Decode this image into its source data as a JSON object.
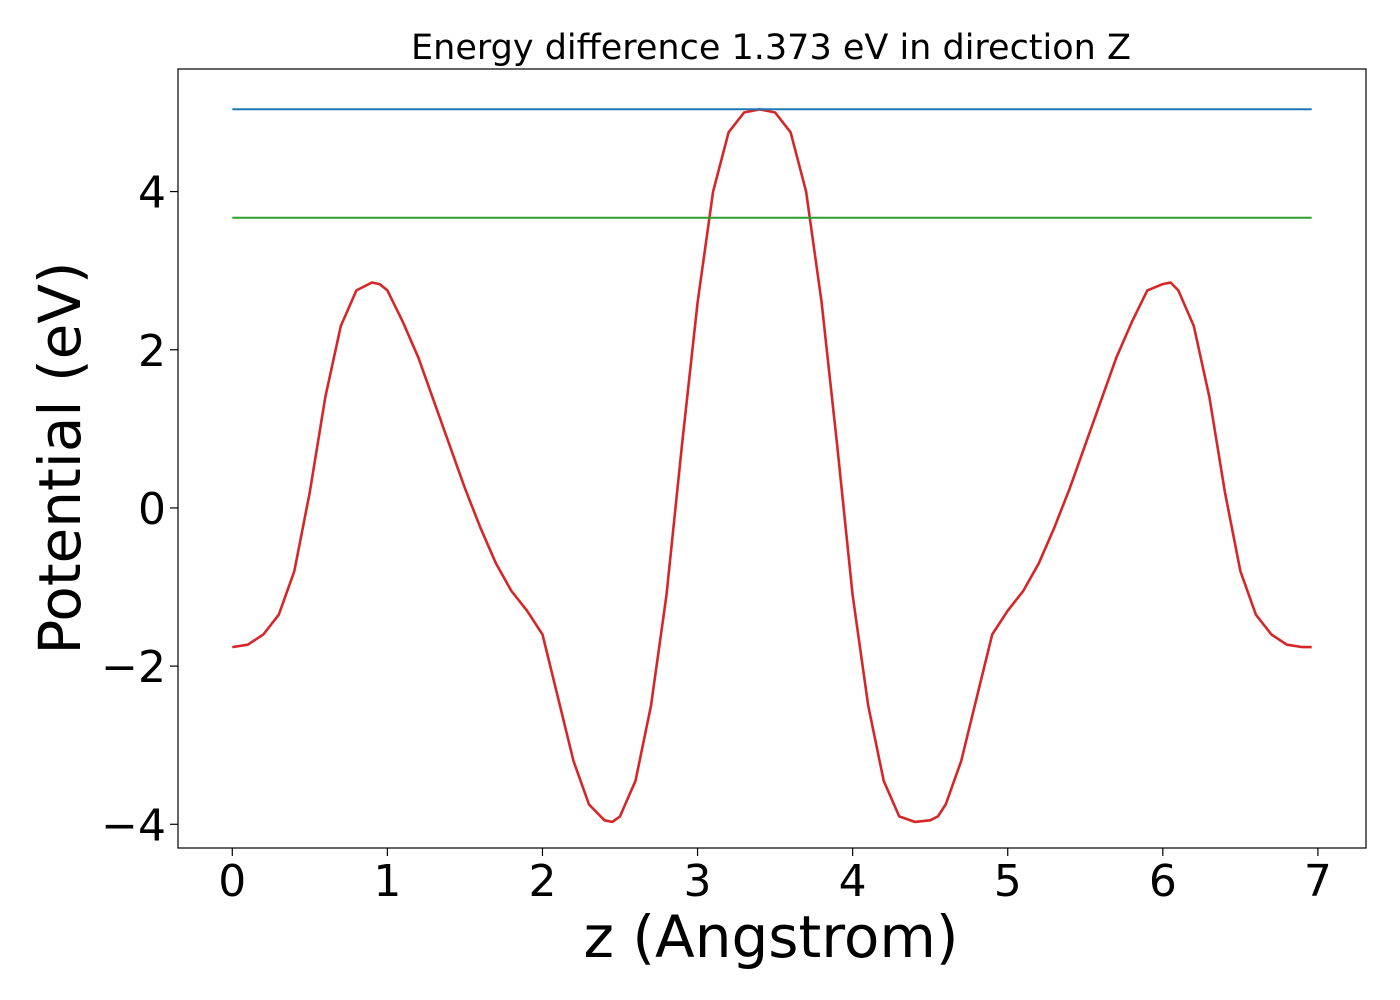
{
  "chart_data": {
    "type": "line",
    "title": "Energy difference 1.373 eV in direction Z",
    "xlabel": "z (Angstrom)",
    "ylabel": "Potential (eV)",
    "xlim": [
      -0.35,
      7.31
    ],
    "ylim": [
      -4.3,
      5.55
    ],
    "grid": false,
    "x_ticks": [
      0,
      1,
      2,
      3,
      4,
      5,
      6,
      7
    ],
    "x_tick_labels": [
      "0",
      "1",
      "2",
      "3",
      "4",
      "5",
      "6",
      "7"
    ],
    "y_ticks": [
      -4,
      -2,
      0,
      2,
      4
    ],
    "y_tick_labels": [
      "−4",
      "−2",
      "0",
      "2",
      "4"
    ],
    "series": [
      {
        "color": "#d62728",
        "x": [
          0.0,
          0.1,
          0.2,
          0.3,
          0.4,
          0.5,
          0.6,
          0.7,
          0.8,
          0.9,
          0.95,
          1.0,
          1.1,
          1.2,
          1.3,
          1.4,
          1.5,
          1.6,
          1.7,
          1.8,
          1.9,
          2.0,
          2.1,
          2.2,
          2.3,
          2.4,
          2.45,
          2.5,
          2.6,
          2.7,
          2.8,
          2.9,
          3.0,
          3.1,
          3.2,
          3.3,
          3.4,
          3.5,
          3.6,
          3.7,
          3.8,
          3.9,
          4.0,
          4.1,
          4.2,
          4.3,
          4.4,
          4.5,
          4.55,
          4.6,
          4.7,
          4.8,
          4.9,
          5.0,
          5.1,
          5.2,
          5.3,
          5.4,
          5.5,
          5.6,
          5.7,
          5.8,
          5.9,
          6.0,
          6.05,
          6.1,
          6.2,
          6.3,
          6.4,
          6.5,
          6.6,
          6.7,
          6.8,
          6.9,
          6.96
        ],
        "y": [
          -1.76,
          -1.73,
          -1.6,
          -1.35,
          -0.8,
          0.2,
          1.4,
          2.3,
          2.75,
          2.85,
          2.83,
          2.75,
          2.35,
          1.9,
          1.35,
          0.8,
          0.25,
          -0.25,
          -0.7,
          -1.05,
          -1.3,
          -1.6,
          -2.4,
          -3.2,
          -3.75,
          -3.95,
          -3.97,
          -3.9,
          -3.45,
          -2.5,
          -1.1,
          0.8,
          2.6,
          4.0,
          4.75,
          5.0,
          5.04,
          5.0,
          4.75,
          4.0,
          2.6,
          0.8,
          -1.1,
          -2.5,
          -3.45,
          -3.9,
          -3.97,
          -3.95,
          -3.9,
          -3.75,
          -3.2,
          -2.4,
          -1.6,
          -1.3,
          -1.05,
          -0.7,
          -0.25,
          0.25,
          0.8,
          1.35,
          1.9,
          2.35,
          2.75,
          2.83,
          2.85,
          2.75,
          2.3,
          1.4,
          0.2,
          -0.8,
          -1.35,
          -1.6,
          -1.73,
          -1.76,
          -1.76
        ]
      },
      {
        "color": "#1f77b4",
        "x": [
          0.0,
          6.96
        ],
        "y": [
          5.04,
          5.04
        ]
      },
      {
        "color": "#2ca02c",
        "x": [
          0.0,
          6.96
        ],
        "y": [
          3.67,
          3.67
        ]
      }
    ]
  }
}
